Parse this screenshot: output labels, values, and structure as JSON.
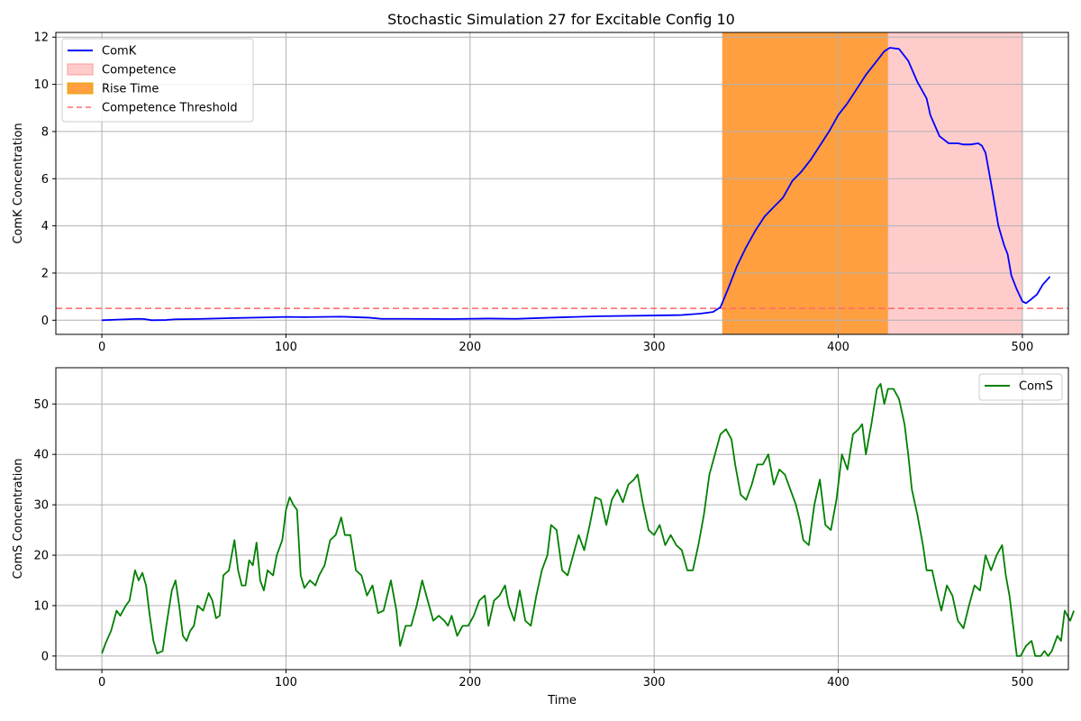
{
  "figure": {
    "title": "Stochastic Simulation 27 for Excitable Config 10",
    "xlabel": "Time"
  },
  "chart_data": [
    {
      "type": "line",
      "title": "Stochastic Simulation 27 for Excitable Config 10",
      "xlabel": "",
      "ylabel": "ComK Concentration",
      "xlim": [
        -25,
        525
      ],
      "ylim": [
        -0.6,
        12.2
      ],
      "xticks": [
        0,
        100,
        200,
        300,
        400,
        500
      ],
      "yticks": [
        0,
        2,
        4,
        6,
        8,
        10,
        12
      ],
      "grid": true,
      "legend": "top-left",
      "legend_entries": [
        "ComK",
        "Competence",
        "Rise Time",
        "Competence Threshold"
      ],
      "series": [
        {
          "name": "ComK",
          "color": "#0000ff",
          "points": [
            [
              0,
              0.0
            ],
            [
              10,
              0.03
            ],
            [
              20,
              0.06
            ],
            [
              23,
              0.05
            ],
            [
              27,
              0.0
            ],
            [
              35,
              0.01
            ],
            [
              40,
              0.04
            ],
            [
              50,
              0.05
            ],
            [
              70,
              0.09
            ],
            [
              90,
              0.12
            ],
            [
              100,
              0.14
            ],
            [
              110,
              0.13
            ],
            [
              130,
              0.15
            ],
            [
              145,
              0.11
            ],
            [
              152,
              0.06
            ],
            [
              165,
              0.06
            ],
            [
              190,
              0.05
            ],
            [
              210,
              0.07
            ],
            [
              225,
              0.06
            ],
            [
              240,
              0.1
            ],
            [
              270,
              0.17
            ],
            [
              300,
              0.2
            ],
            [
              315,
              0.22
            ],
            [
              325,
              0.28
            ],
            [
              332,
              0.35
            ],
            [
              336,
              0.55
            ],
            [
              340,
              1.3
            ],
            [
              345,
              2.3
            ],
            [
              350,
              3.1
            ],
            [
              355,
              3.8
            ],
            [
              360,
              4.4
            ],
            [
              365,
              4.8
            ],
            [
              370,
              5.2
            ],
            [
              375,
              5.9
            ],
            [
              380,
              6.3
            ],
            [
              385,
              6.8
            ],
            [
              390,
              7.4
            ],
            [
              395,
              8.0
            ],
            [
              400,
              8.7
            ],
            [
              405,
              9.2
            ],
            [
              410,
              9.8
            ],
            [
              415,
              10.4
            ],
            [
              420,
              10.9
            ],
            [
              425,
              11.4
            ],
            [
              428,
              11.55
            ],
            [
              433,
              11.5
            ],
            [
              438,
              11.0
            ],
            [
              443,
              10.1
            ],
            [
              448,
              9.4
            ],
            [
              450,
              8.7
            ],
            [
              455,
              7.8
            ],
            [
              460,
              7.5
            ],
            [
              465,
              7.5
            ],
            [
              468,
              7.45
            ],
            [
              472,
              7.45
            ],
            [
              476,
              7.5
            ],
            [
              478,
              7.4
            ],
            [
              480,
              7.1
            ],
            [
              483,
              5.8
            ],
            [
              487,
              4.0
            ],
            [
              490,
              3.2
            ],
            [
              492,
              2.8
            ],
            [
              494,
              1.9
            ],
            [
              497,
              1.3
            ],
            [
              500,
              0.8
            ],
            [
              502,
              0.72
            ],
            [
              505,
              0.9
            ],
            [
              508,
              1.1
            ],
            [
              511,
              1.5
            ],
            [
              515,
              1.85
            ]
          ]
        },
        {
          "name": "Rise Time",
          "type": "span",
          "color": "#ff9f40",
          "x_range": [
            337,
            427
          ]
        },
        {
          "name": "Competence",
          "type": "span",
          "color": "#ffcccc",
          "x_range": [
            337,
            500
          ]
        },
        {
          "name": "Competence Threshold",
          "type": "hline",
          "color": "#ff6b6b",
          "y": 0.5
        }
      ]
    },
    {
      "type": "line",
      "title": "",
      "xlabel": "Time",
      "ylabel": "ComS Concentration",
      "xlim": [
        -25,
        525
      ],
      "ylim": [
        -2.7,
        57.2
      ],
      "xticks": [
        0,
        100,
        200,
        300,
        400,
        500
      ],
      "yticks": [
        0,
        10,
        20,
        30,
        40,
        50
      ],
      "grid": true,
      "legend": "top-right",
      "legend_entries": [
        "ComS"
      ],
      "series": [
        {
          "name": "ComS",
          "color": "#008000",
          "points": [
            [
              0,
              0.5
            ],
            [
              2,
              2.5
            ],
            [
              5,
              5
            ],
            [
              8,
              9
            ],
            [
              10,
              8
            ],
            [
              13,
              10
            ],
            [
              15,
              11
            ],
            [
              18,
              17
            ],
            [
              20,
              15
            ],
            [
              22,
              16.5
            ],
            [
              24,
              14
            ],
            [
              26,
              8
            ],
            [
              28,
              3
            ],
            [
              30,
              0.5
            ],
            [
              33,
              1
            ],
            [
              35,
              6
            ],
            [
              38,
              13
            ],
            [
              40,
              15
            ],
            [
              42,
              10
            ],
            [
              44,
              4
            ],
            [
              46,
              3
            ],
            [
              48,
              5
            ],
            [
              50,
              6
            ],
            [
              52,
              10
            ],
            [
              55,
              9
            ],
            [
              58,
              12.5
            ],
            [
              60,
              11
            ],
            [
              62,
              7.5
            ],
            [
              64,
              8
            ],
            [
              66,
              16
            ],
            [
              69,
              17
            ],
            [
              72,
              23
            ],
            [
              74,
              17
            ],
            [
              76,
              14
            ],
            [
              78,
              14
            ],
            [
              80,
              19
            ],
            [
              82,
              18
            ],
            [
              84,
              22.5
            ],
            [
              86,
              15
            ],
            [
              88,
              13
            ],
            [
              90,
              17
            ],
            [
              93,
              16
            ],
            [
              95,
              20
            ],
            [
              98,
              23
            ],
            [
              100,
              29
            ],
            [
              102,
              31.5
            ],
            [
              104,
              30
            ],
            [
              106,
              29
            ],
            [
              108,
              16
            ],
            [
              110,
              13.5
            ],
            [
              113,
              15
            ],
            [
              116,
              14
            ],
            [
              118,
              16
            ],
            [
              121,
              18
            ],
            [
              124,
              23
            ],
            [
              127,
              24
            ],
            [
              130,
              27.5
            ],
            [
              132,
              24
            ],
            [
              135,
              24
            ],
            [
              138,
              17
            ],
            [
              141,
              16
            ],
            [
              144,
              12
            ],
            [
              147,
              14
            ],
            [
              150,
              8.5
            ],
            [
              153,
              9
            ],
            [
              155,
              12
            ],
            [
              157,
              15
            ],
            [
              160,
              9
            ],
            [
              162,
              2
            ],
            [
              165,
              6
            ],
            [
              168,
              6
            ],
            [
              171,
              10
            ],
            [
              174,
              15
            ],
            [
              177,
              11
            ],
            [
              180,
              7
            ],
            [
              183,
              8
            ],
            [
              186,
              7
            ],
            [
              188,
              6
            ],
            [
              190,
              8
            ],
            [
              193,
              4
            ],
            [
              196,
              6
            ],
            [
              199,
              6
            ],
            [
              202,
              8
            ],
            [
              205,
              11
            ],
            [
              208,
              12
            ],
            [
              210,
              6
            ],
            [
              213,
              11
            ],
            [
              216,
              12
            ],
            [
              219,
              14
            ],
            [
              221,
              10
            ],
            [
              224,
              7
            ],
            [
              227,
              13
            ],
            [
              230,
              7
            ],
            [
              233,
              6
            ],
            [
              236,
              12
            ],
            [
              239,
              17
            ],
            [
              242,
              20
            ],
            [
              244,
              26
            ],
            [
              247,
              25
            ],
            [
              250,
              17
            ],
            [
              253,
              16
            ],
            [
              256,
              20
            ],
            [
              259,
              24
            ],
            [
              262,
              21
            ],
            [
              265,
              26
            ],
            [
              268,
              31.5
            ],
            [
              271,
              31
            ],
            [
              274,
              26
            ],
            [
              277,
              31
            ],
            [
              280,
              33
            ],
            [
              283,
              30.5
            ],
            [
              286,
              34
            ],
            [
              289,
              35
            ],
            [
              291,
              36
            ],
            [
              294,
              30
            ],
            [
              297,
              25
            ],
            [
              300,
              24
            ],
            [
              303,
              26
            ],
            [
              306,
              22
            ],
            [
              309,
              24
            ],
            [
              312,
              22
            ],
            [
              315,
              21
            ],
            [
              318,
              17
            ],
            [
              321,
              17
            ],
            [
              324,
              22
            ],
            [
              327,
              28
            ],
            [
              330,
              36
            ],
            [
              333,
              40
            ],
            [
              336,
              44
            ],
            [
              339,
              45
            ],
            [
              342,
              43
            ],
            [
              344,
              38
            ],
            [
              347,
              32
            ],
            [
              350,
              31
            ],
            [
              353,
              34
            ],
            [
              356,
              38
            ],
            [
              359,
              38
            ],
            [
              362,
              40
            ],
            [
              365,
              34
            ],
            [
              368,
              37
            ],
            [
              371,
              36
            ],
            [
              374,
              33
            ],
            [
              377,
              30
            ],
            [
              379,
              27
            ],
            [
              381,
              23
            ],
            [
              384,
              22
            ],
            [
              387,
              30
            ],
            [
              390,
              35
            ],
            [
              393,
              26
            ],
            [
              396,
              25
            ],
            [
              399,
              31
            ],
            [
              402,
              40
            ],
            [
              405,
              37
            ],
            [
              408,
              44
            ],
            [
              411,
              45
            ],
            [
              413,
              46
            ],
            [
              415,
              40
            ],
            [
              418,
              46
            ],
            [
              421,
              53
            ],
            [
              423,
              54
            ],
            [
              425,
              50
            ],
            [
              427,
              53
            ],
            [
              430,
              53
            ],
            [
              433,
              51
            ],
            [
              436,
              46
            ],
            [
              438,
              40
            ],
            [
              440,
              33
            ],
            [
              443,
              28
            ],
            [
              446,
              22
            ],
            [
              448,
              17
            ],
            [
              451,
              17
            ],
            [
              454,
              12
            ],
            [
              456,
              9
            ],
            [
              459,
              14
            ],
            [
              462,
              12
            ],
            [
              465,
              7
            ],
            [
              468,
              5.5
            ],
            [
              471,
              10
            ],
            [
              474,
              14
            ],
            [
              477,
              13
            ],
            [
              480,
              20
            ],
            [
              483,
              17
            ],
            [
              486,
              20
            ],
            [
              489,
              22
            ],
            [
              491,
              16
            ],
            [
              493,
              12
            ],
            [
              495,
              6
            ],
            [
              497,
              0
            ],
            [
              499,
              0
            ],
            [
              502,
              2
            ],
            [
              505,
              3
            ],
            [
              507,
              0
            ],
            [
              510,
              0
            ],
            [
              512,
              1
            ],
            [
              514,
              0
            ],
            [
              516,
              1
            ],
            [
              519,
              4
            ],
            [
              521,
              3
            ],
            [
              523,
              9
            ],
            [
              526,
              7
            ],
            [
              528,
              9
            ]
          ]
        }
      ]
    }
  ]
}
